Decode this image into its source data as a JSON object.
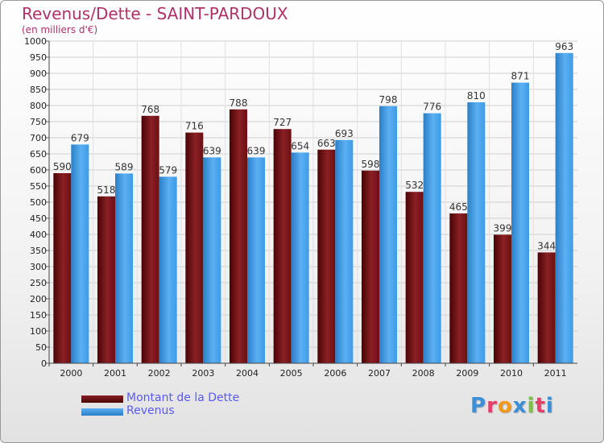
{
  "title": "Revenus/Dette - SAINT-PARDOUX",
  "subtitle": "(en milliers d'€)",
  "colors": {
    "dette": "#7a1418",
    "revenus": "#3d9be6",
    "title": "#b0306a",
    "legend_text": "#5a5af0"
  },
  "logo": {
    "letters": [
      {
        "ch": "P",
        "color": "#3a8fd6"
      },
      {
        "ch": "r",
        "color": "#e83c6a"
      },
      {
        "ch": "o",
        "color": "#f39a1c"
      },
      {
        "ch": "x",
        "color": "#3a8fd6"
      },
      {
        "ch": "i",
        "color": "#7cc242"
      },
      {
        "ch": "t",
        "color": "#e83c6a"
      },
      {
        "ch": "i",
        "color": "#3a8fd6"
      }
    ]
  },
  "chart_data": {
    "type": "bar",
    "title": "Revenus/Dette - SAINT-PARDOUX",
    "subtitle": "(en milliers d'€)",
    "categories": [
      "2000",
      "2001",
      "2002",
      "2003",
      "2004",
      "2005",
      "2006",
      "2007",
      "2008",
      "2009",
      "2010",
      "2011"
    ],
    "series": [
      {
        "name": "Montant de la Dette",
        "color": "#7a1418",
        "values": [
          590,
          518,
          768,
          716,
          788,
          727,
          663,
          598,
          532,
          465,
          399,
          344
        ]
      },
      {
        "name": "Revenus",
        "color": "#3d9be6",
        "values": [
          679,
          589,
          579,
          639,
          639,
          654,
          693,
          798,
          776,
          810,
          871,
          963
        ]
      }
    ],
    "ylim": [
      0,
      1000
    ],
    "ytick_step": 50,
    "grid": true,
    "legend_position": "bottom-left"
  }
}
